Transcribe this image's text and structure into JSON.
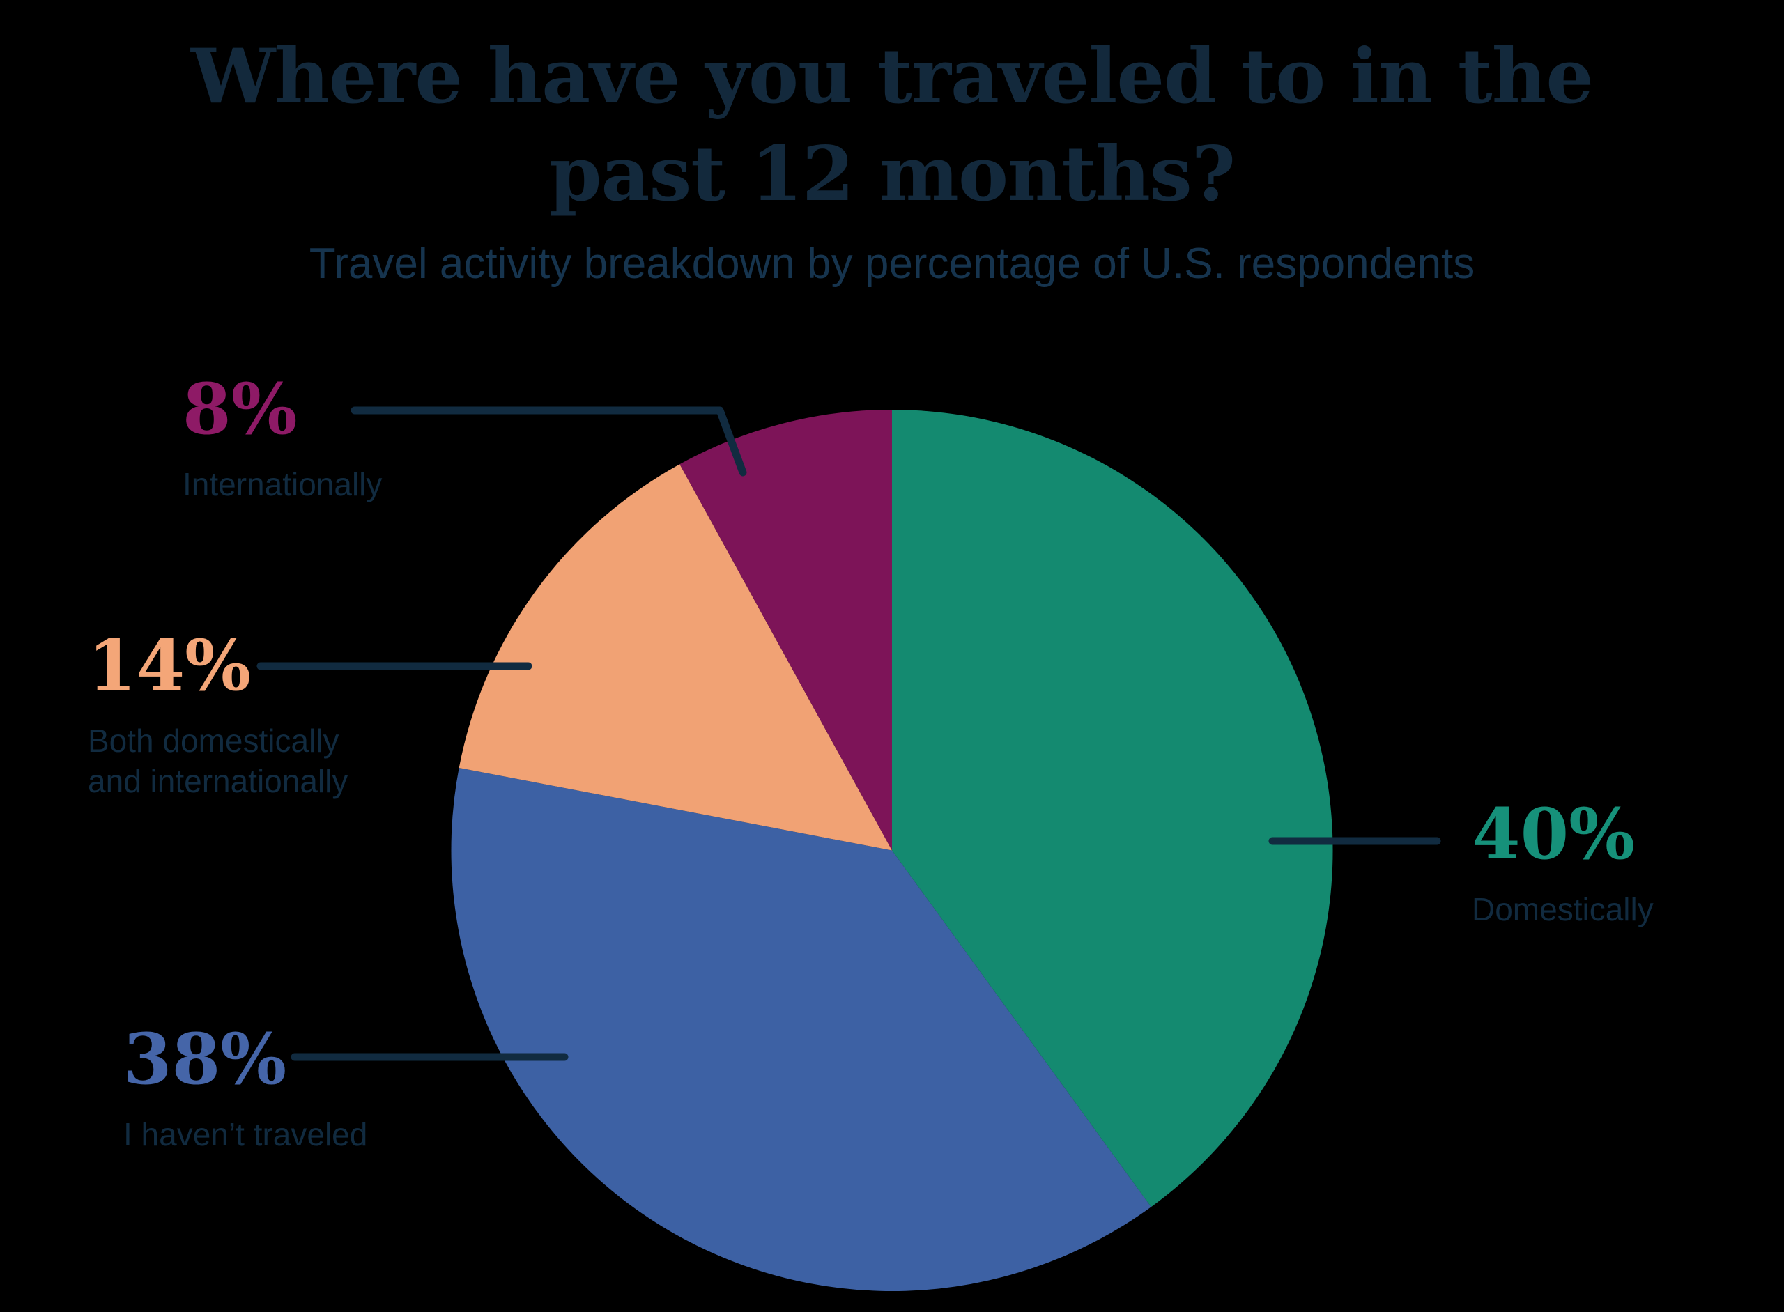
{
  "header": {
    "title_lines": [
      "Where have you traveled to in the",
      "past 12 months?"
    ],
    "subtitle": "Travel activity breakdown by percentage of U.S. respondents"
  },
  "chart_data": {
    "type": "pie",
    "title": "Where have you traveled to in the past 12 months?",
    "subtitle": "Travel activity breakdown by percentage of U.S. respondents",
    "units": "percent of U.S. respondents",
    "start_angle": "12 o'clock",
    "direction": "clockwise",
    "legend_position": "none (direct callout labels with leader lines)",
    "segments": [
      {
        "label": "Domestically",
        "value": 40,
        "pct_label": "40%",
        "color": "#148A70",
        "text_color": "#16917A",
        "label_lines": [
          "Domestically"
        ]
      },
      {
        "label": "I haven’t traveled",
        "value": 38,
        "pct_label": "38%",
        "color": "#3D61A4",
        "text_color": "#4565A8",
        "label_lines": [
          "I haven’t traveled"
        ]
      },
      {
        "label": "Both domestically and internationally",
        "value": 14,
        "pct_label": "14%",
        "color": "#F1A274",
        "text_color": "#F4A678",
        "label_lines": [
          "Both domestically",
          "and internationally"
        ]
      },
      {
        "label": "Internationally",
        "value": 8,
        "pct_label": "8%",
        "color": "#7D1458",
        "text_color": "#8E1A66",
        "label_lines": [
          "Internationally"
        ]
      }
    ]
  },
  "colors": {
    "background": "#000000",
    "title_text": "#13293C",
    "subtitle_text": "#16344E",
    "label_text": "#112B40",
    "leader_line": "#112B40"
  }
}
